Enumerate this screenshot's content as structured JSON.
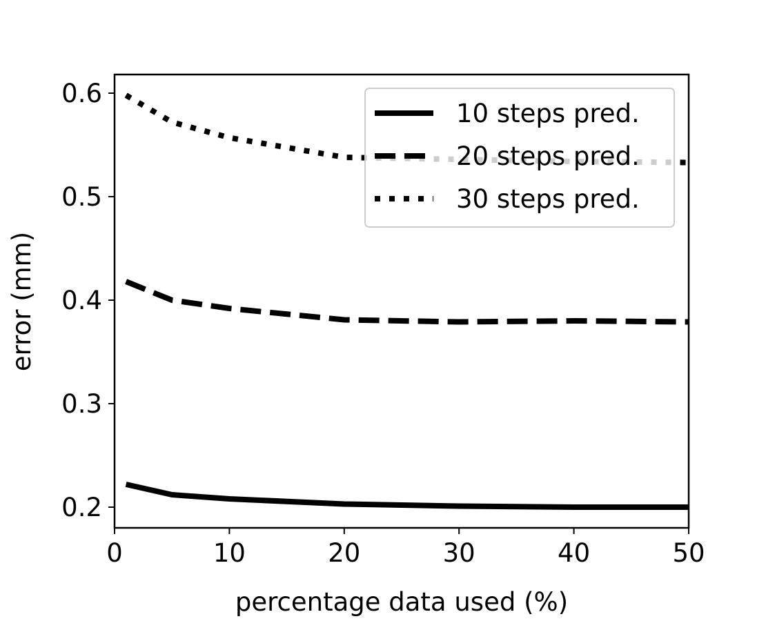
{
  "chart_data": {
    "type": "line",
    "title": "",
    "xlabel": "percentage data used (%)",
    "ylabel": "error (mm)",
    "xlim": [
      0,
      50
    ],
    "ylim": [
      0.18,
      0.618
    ],
    "xticks": [
      0,
      10,
      20,
      30,
      40,
      50
    ],
    "yticks": [
      0.2,
      0.3,
      0.4,
      0.5,
      0.6
    ],
    "xtick_labels": [
      "0",
      "10",
      "20",
      "30",
      "40",
      "50"
    ],
    "ytick_labels": [
      "0.2",
      "0.3",
      "0.4",
      "0.5",
      "0.6"
    ],
    "grid": false,
    "legend_position": "top-right",
    "x": [
      1,
      5,
      10,
      20,
      30,
      40,
      50
    ],
    "series": [
      {
        "name": "10 steps pred.",
        "style": "solid",
        "color": "#000000",
        "values": [
          0.222,
          0.212,
          0.208,
          0.203,
          0.201,
          0.2,
          0.2
        ]
      },
      {
        "name": "20 steps pred.",
        "style": "dashed",
        "color": "#000000",
        "values": [
          0.418,
          0.4,
          0.392,
          0.381,
          0.379,
          0.38,
          0.379
        ]
      },
      {
        "name": "30 steps pred.",
        "style": "dotted",
        "color": "#000000",
        "values": [
          0.598,
          0.572,
          0.557,
          0.538,
          0.536,
          0.534,
          0.533
        ]
      }
    ]
  }
}
